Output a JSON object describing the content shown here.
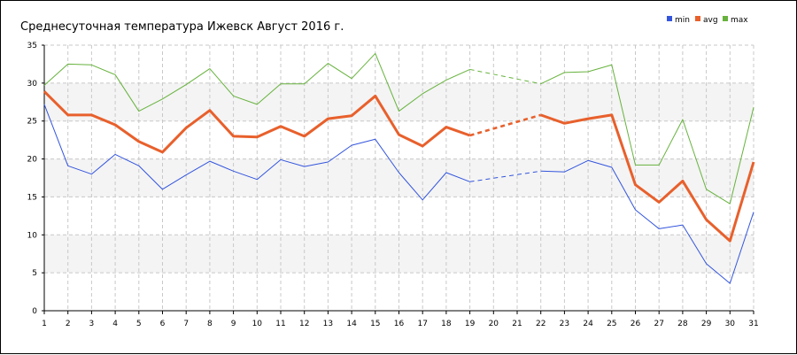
{
  "chart_data": {
    "type": "line",
    "title": "Среднесуточная температура Ижевск  Август 2016 г.",
    "xlabel": "",
    "ylabel": "",
    "x": [
      1,
      2,
      3,
      4,
      5,
      6,
      7,
      8,
      9,
      10,
      11,
      12,
      13,
      14,
      15,
      16,
      17,
      18,
      19,
      20,
      21,
      22,
      23,
      24,
      25,
      26,
      27,
      28,
      29,
      30,
      31
    ],
    "xlim": [
      1,
      31
    ],
    "ylim": [
      0,
      35
    ],
    "y_ticks": [
      0,
      5,
      10,
      15,
      20,
      25,
      30,
      35
    ],
    "grid": true,
    "legend_position": "top-right",
    "missing_x_dashed": [
      20,
      21
    ],
    "series": [
      {
        "name": "min",
        "color": "#3355dd",
        "values": [
          27.2,
          19.1,
          18.0,
          20.6,
          19.1,
          16.0,
          17.9,
          19.7,
          18.4,
          17.3,
          19.9,
          19.0,
          19.6,
          21.8,
          22.6,
          18.2,
          14.6,
          18.2,
          17.0,
          null,
          null,
          18.4,
          18.3,
          19.8,
          18.9,
          13.3,
          10.8,
          11.3,
          6.2,
          3.6,
          13.0
        ]
      },
      {
        "name": "avg",
        "color": "#e8602c",
        "values": [
          28.9,
          25.8,
          25.8,
          24.5,
          22.3,
          20.9,
          24.1,
          26.4,
          23.0,
          22.9,
          24.3,
          23.0,
          25.3,
          25.7,
          28.3,
          23.2,
          21.7,
          24.2,
          23.1,
          null,
          null,
          25.8,
          24.7,
          25.3,
          25.8,
          16.6,
          14.3,
          17.1,
          12.0,
          9.2,
          19.6
        ]
      },
      {
        "name": "max",
        "color": "#66b23c",
        "values": [
          29.7,
          32.5,
          32.4,
          31.1,
          26.3,
          27.9,
          29.8,
          31.9,
          28.3,
          27.2,
          29.9,
          29.9,
          32.6,
          30.6,
          33.9,
          26.3,
          28.6,
          30.4,
          31.8,
          null,
          null,
          29.9,
          31.4,
          31.5,
          32.4,
          19.2,
          19.2,
          25.2,
          16.0,
          14.1,
          26.8
        ]
      }
    ]
  }
}
